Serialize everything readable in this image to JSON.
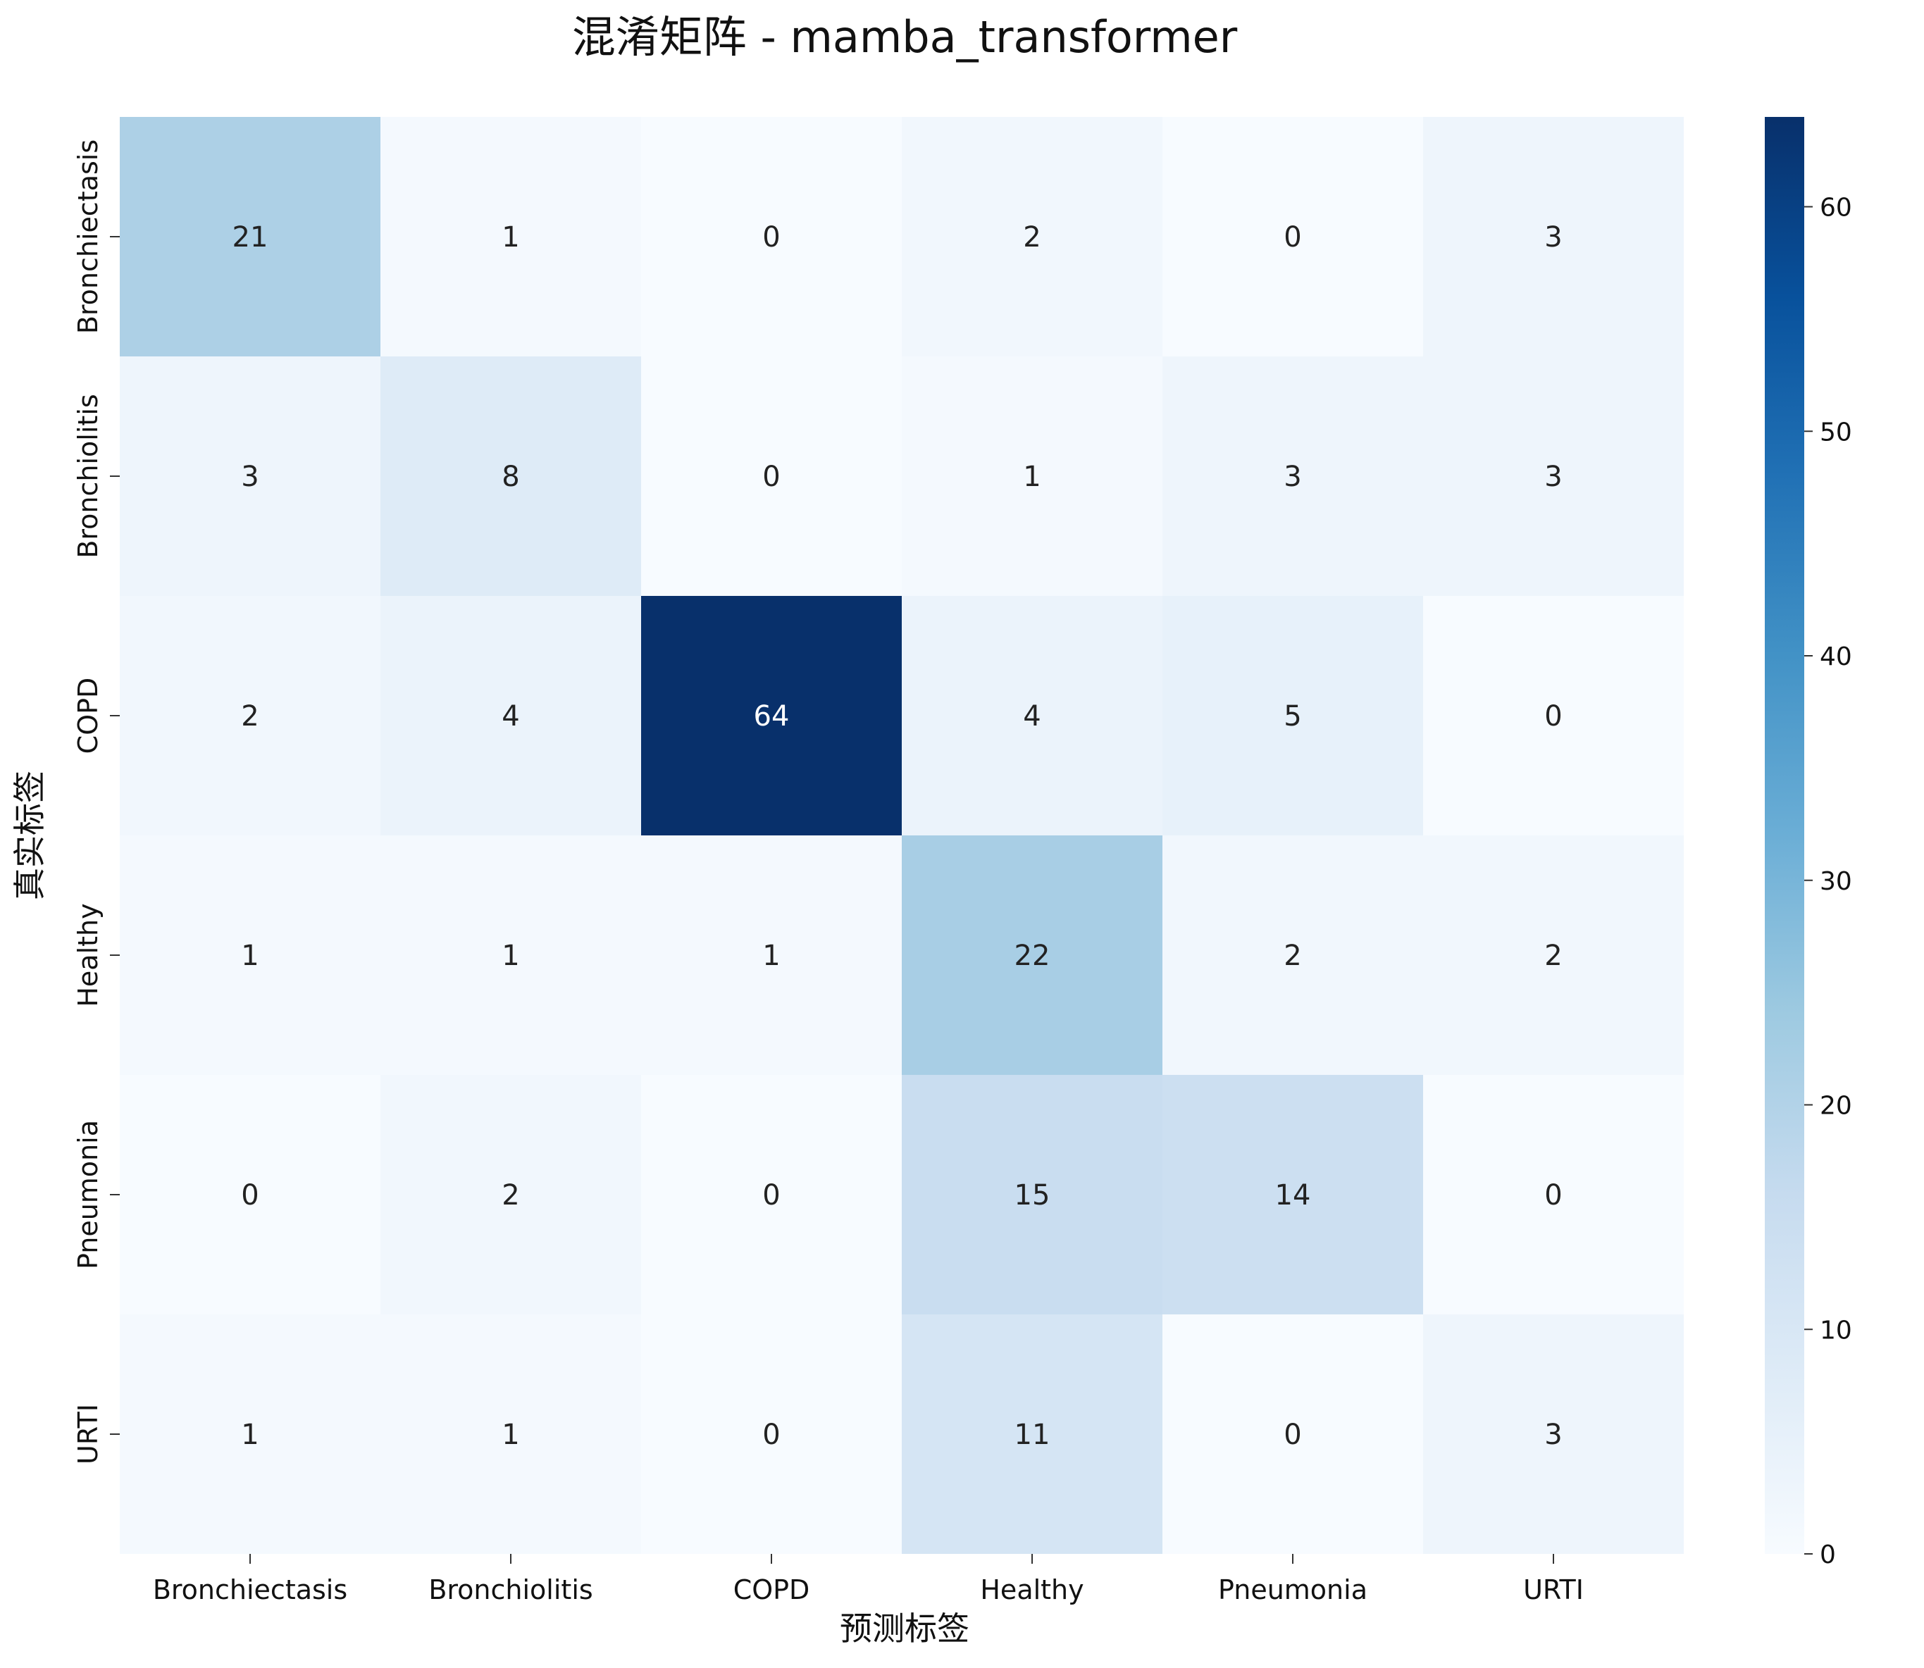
{
  "chart_data": {
    "type": "heatmap",
    "title": "混淆矩阵 - mamba_transformer",
    "xlabel": "预测标签",
    "ylabel": "真实标签",
    "x_categories": [
      "Bronchiectasis",
      "Bronchiolitis",
      "COPD",
      "Healthy",
      "Pneumonia",
      "URTI"
    ],
    "y_categories": [
      "Bronchiectasis",
      "Bronchiolitis",
      "COPD",
      "Healthy",
      "Pneumonia",
      "URTI"
    ],
    "values": [
      [
        21,
        1,
        0,
        2,
        0,
        3
      ],
      [
        3,
        8,
        0,
        1,
        3,
        3
      ],
      [
        2,
        4,
        64,
        4,
        5,
        0
      ],
      [
        1,
        1,
        1,
        22,
        2,
        2
      ],
      [
        0,
        2,
        0,
        15,
        14,
        0
      ],
      [
        1,
        1,
        0,
        11,
        0,
        3
      ]
    ],
    "colormap": "Blues",
    "colorbar": {
      "min": 0,
      "max": 64,
      "ticks": [
        0,
        10,
        20,
        30,
        40,
        50,
        60
      ]
    }
  }
}
